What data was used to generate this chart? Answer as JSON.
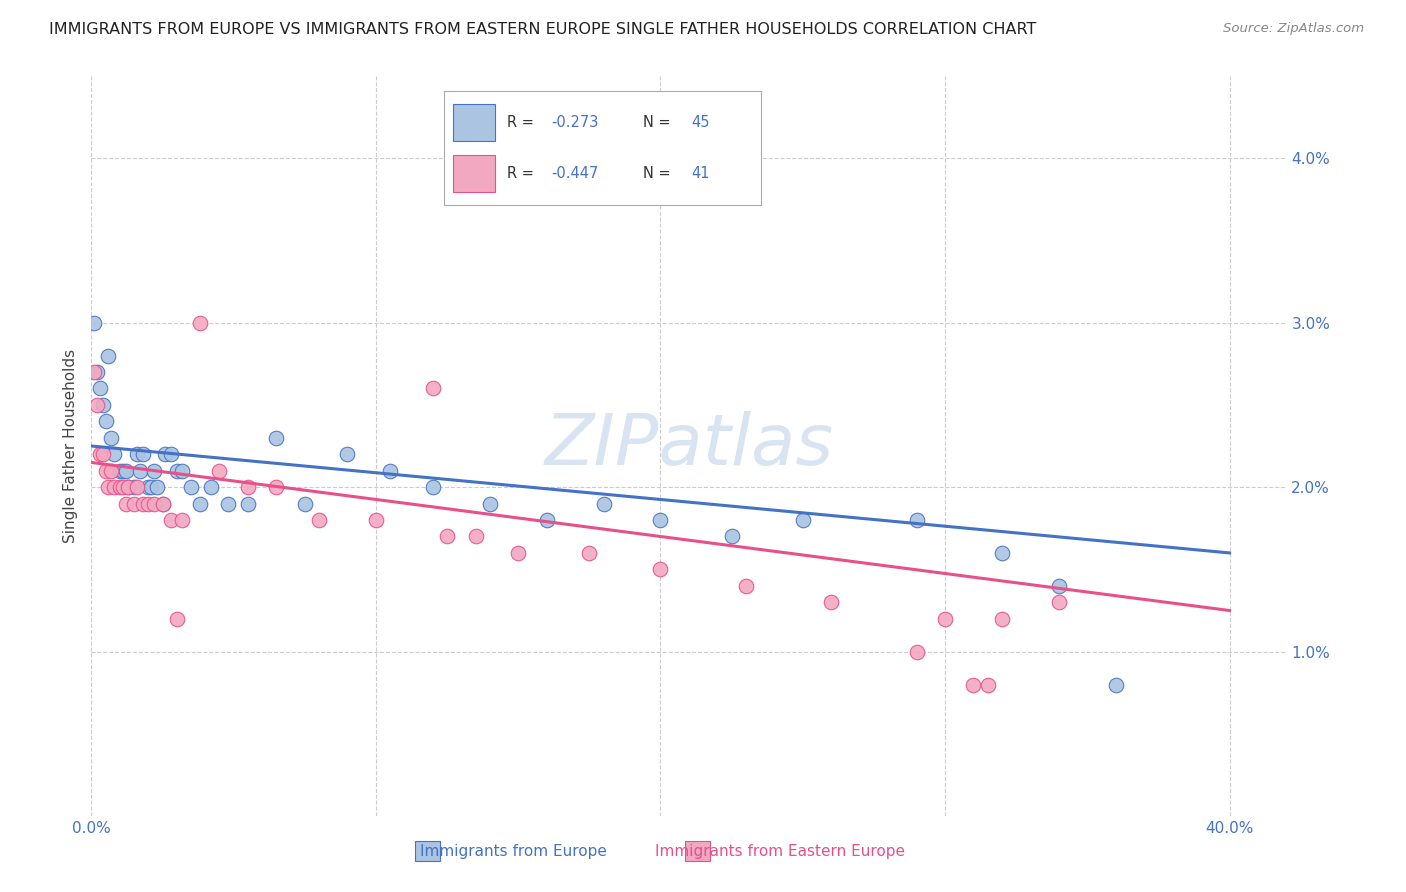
{
  "title": "IMMIGRANTS FROM EUROPE VS IMMIGRANTS FROM EASTERN EUROPE SINGLE FATHER HOUSEHOLDS CORRELATION CHART",
  "source": "Source: ZipAtlas.com",
  "xlabel_blue": "Immigrants from Europe",
  "xlabel_pink": "Immigrants from Eastern Europe",
  "ylabel": "Single Father Households",
  "xlim": [
    0.0,
    0.42
  ],
  "ylim": [
    0.0,
    0.045
  ],
  "blue_color": "#aac4e2",
  "pink_color": "#f2a8c0",
  "line_blue": "#4472C4",
  "line_pink": "#E8508A",
  "blue_line_start_y": 0.0225,
  "blue_line_end_y": 0.016,
  "pink_line_start_y": 0.0215,
  "pink_line_end_y": 0.0125,
  "blue_x": [
    0.001,
    0.002,
    0.003,
    0.004,
    0.005,
    0.006,
    0.007,
    0.008,
    0.01,
    0.011,
    0.012,
    0.013,
    0.015,
    0.016,
    0.017,
    0.018,
    0.02,
    0.021,
    0.022,
    0.023,
    0.025,
    0.026,
    0.028,
    0.03,
    0.032,
    0.035,
    0.038,
    0.042,
    0.048,
    0.055,
    0.065,
    0.075,
    0.09,
    0.105,
    0.12,
    0.14,
    0.16,
    0.18,
    0.2,
    0.225,
    0.25,
    0.29,
    0.32,
    0.34,
    0.36
  ],
  "blue_y": [
    0.03,
    0.027,
    0.026,
    0.025,
    0.024,
    0.028,
    0.023,
    0.022,
    0.021,
    0.021,
    0.021,
    0.02,
    0.02,
    0.022,
    0.021,
    0.022,
    0.02,
    0.02,
    0.021,
    0.02,
    0.019,
    0.022,
    0.022,
    0.021,
    0.021,
    0.02,
    0.019,
    0.02,
    0.019,
    0.019,
    0.023,
    0.019,
    0.022,
    0.021,
    0.02,
    0.019,
    0.018,
    0.019,
    0.018,
    0.017,
    0.018,
    0.018,
    0.016,
    0.014,
    0.008
  ],
  "pink_x": [
    0.001,
    0.002,
    0.003,
    0.004,
    0.005,
    0.006,
    0.007,
    0.008,
    0.01,
    0.011,
    0.012,
    0.013,
    0.015,
    0.016,
    0.018,
    0.02,
    0.022,
    0.025,
    0.028,
    0.032,
    0.038,
    0.045,
    0.055,
    0.065,
    0.08,
    0.1,
    0.125,
    0.15,
    0.175,
    0.2,
    0.23,
    0.26,
    0.3,
    0.32,
    0.34,
    0.31,
    0.315,
    0.135,
    0.03,
    0.12,
    0.29
  ],
  "pink_y": [
    0.027,
    0.025,
    0.022,
    0.022,
    0.021,
    0.02,
    0.021,
    0.02,
    0.02,
    0.02,
    0.019,
    0.02,
    0.019,
    0.02,
    0.019,
    0.019,
    0.019,
    0.019,
    0.018,
    0.018,
    0.03,
    0.021,
    0.02,
    0.02,
    0.018,
    0.018,
    0.017,
    0.016,
    0.016,
    0.015,
    0.014,
    0.013,
    0.012,
    0.012,
    0.013,
    0.008,
    0.008,
    0.017,
    0.012,
    0.026,
    0.01
  ]
}
